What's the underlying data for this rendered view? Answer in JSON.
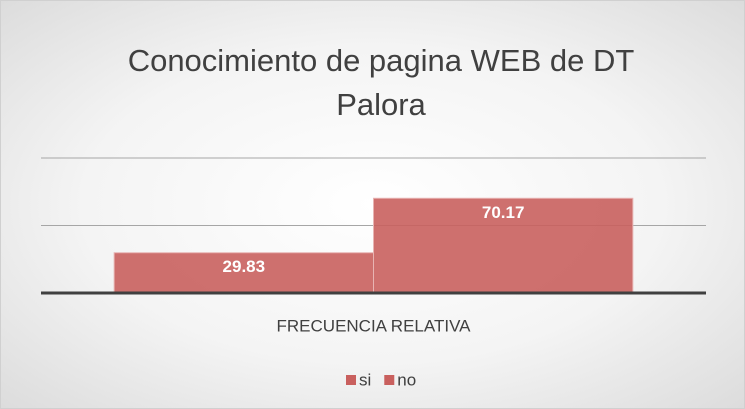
{
  "chart_data": {
    "type": "bar",
    "title": "Conocimiento de pagina WEB de DT Palora",
    "categories": [
      "FRECUENCIA RELATIVA"
    ],
    "series": [
      {
        "name": "si",
        "color": "#c9605e",
        "values": [
          29.83
        ]
      },
      {
        "name": "no",
        "color": "#c9605e",
        "values": [
          70.17
        ]
      }
    ],
    "ylim": [
      0,
      100
    ],
    "yticks": [
      0,
      50,
      100
    ],
    "grid": true
  }
}
